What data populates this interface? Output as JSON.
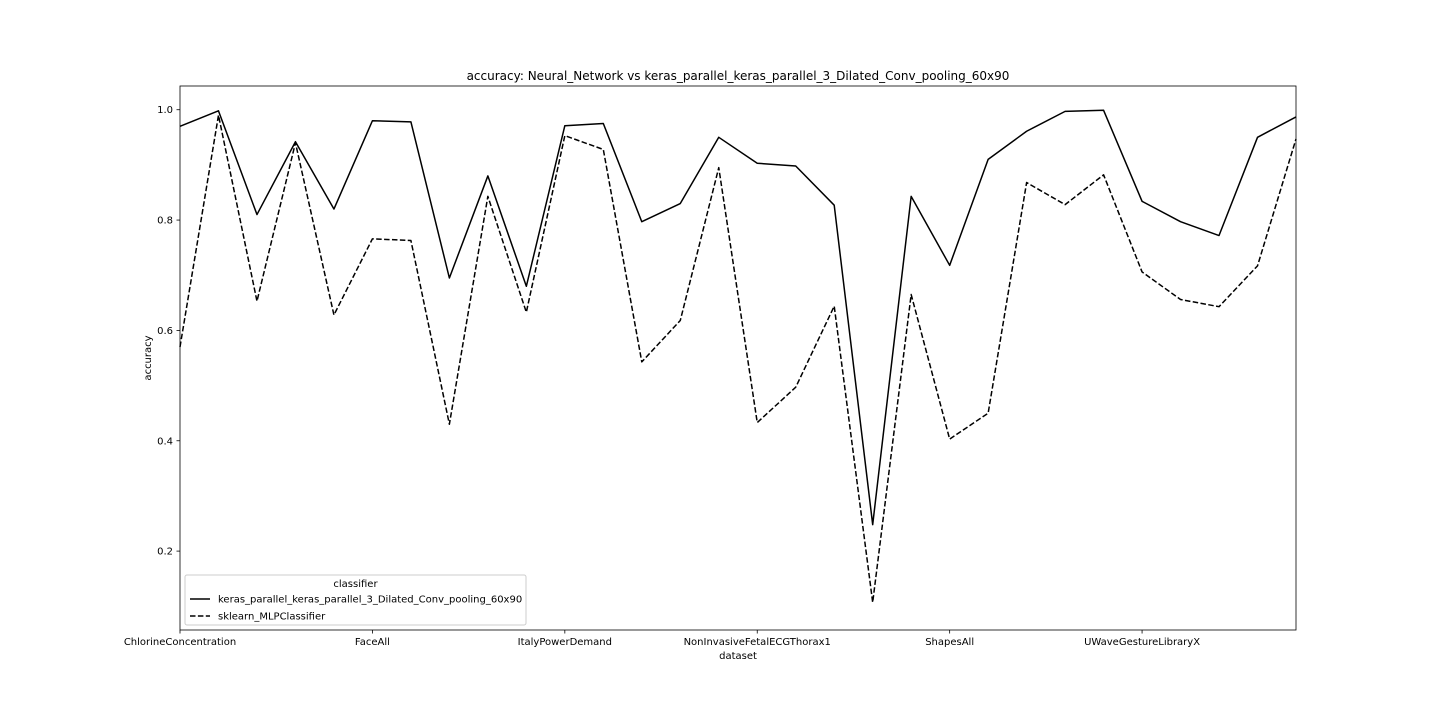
{
  "chart_data": {
    "type": "line",
    "title": "accuracy: Neural_Network vs keras_parallel_keras_parallel_3_Dilated_Conv_pooling_60x90",
    "xlabel": "dataset",
    "ylabel": "accuracy",
    "x_tick_labels": [
      "ChlorineConcentration",
      "FaceAll",
      "ItalyPowerDemand",
      "NonInvasiveFetalECGThorax1",
      "ShapesAll",
      "UWaveGestureLibraryX"
    ],
    "x_tick_positions": [
      0,
      5,
      10,
      15,
      20,
      25
    ],
    "y_ticks": [
      0.2,
      0.4,
      0.6,
      0.8,
      1.0
    ],
    "y_tick_labels": [
      "0.2",
      "0.4",
      "0.6",
      "0.8",
      "1.0"
    ],
    "xlim": [
      0,
      29
    ],
    "ylim": [
      0.057,
      1.043
    ],
    "grid": false,
    "legend": {
      "title": "classifier",
      "location": "lower-left"
    },
    "series": [
      {
        "name": "keras_parallel_keras_parallel_3_Dilated_Conv_pooling_60x90",
        "line_style": "solid",
        "color": "#000000",
        "values": [
          0.97,
          0.998,
          0.81,
          0.942,
          0.82,
          0.98,
          0.978,
          0.695,
          0.88,
          0.68,
          0.971,
          0.975,
          0.797,
          0.83,
          0.95,
          0.903,
          0.898,
          0.827,
          0.248,
          0.843,
          0.718,
          0.91,
          0.961,
          0.997,
          0.999,
          0.834,
          0.797,
          0.772,
          0.95,
          0.987
        ]
      },
      {
        "name": "sklearn_MLPClassifier",
        "line_style": "dashed",
        "color": "#000000",
        "values": [
          0.57,
          0.99,
          0.653,
          0.94,
          0.628,
          0.766,
          0.763,
          0.43,
          0.843,
          0.633,
          0.953,
          0.928,
          0.543,
          0.618,
          0.895,
          0.433,
          0.497,
          0.644,
          0.107,
          0.665,
          0.403,
          0.45,
          0.868,
          0.828,
          0.882,
          0.706,
          0.656,
          0.643,
          0.717,
          0.947
        ]
      }
    ]
  }
}
